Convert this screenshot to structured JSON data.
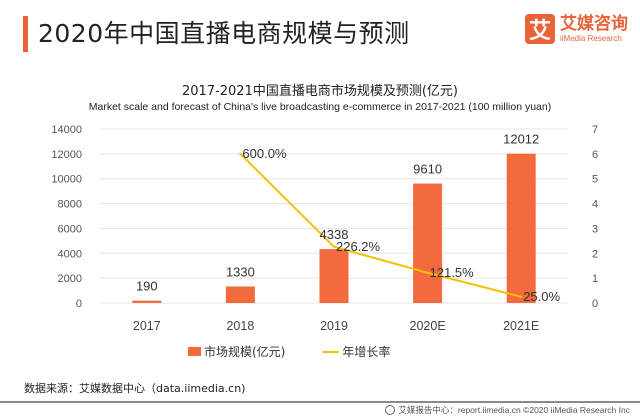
{
  "header": {
    "title": "2020年中国直播电商规模与预测",
    "logo_mark": "艾",
    "logo_cn": "艾媒咨询",
    "logo_en": "iiMedia Research"
  },
  "colors": {
    "accent": "#e8623a",
    "bar": "#f26a3d",
    "line": "#f5c000",
    "grid": "#e6e6e6"
  },
  "chart_data": {
    "type": "bar",
    "title": "2017-2021中国直播电商市场规模及预测(亿元)",
    "subtitle": "Market scale and forecast of China's live broadcasting e-commerce in 2017-2021 (100 million yuan)",
    "categories": [
      "2017",
      "2018",
      "2019",
      "2020E",
      "2021E"
    ],
    "series": [
      {
        "name": "市场规模(亿元)",
        "type": "bar",
        "axis": "left",
        "values": [
          190,
          1330,
          4338,
          9610,
          12012
        ],
        "labels": [
          "190",
          "1330",
          "4338",
          "9610",
          "12012"
        ]
      },
      {
        "name": "年增长率",
        "type": "line",
        "axis": "right",
        "values": [
          null,
          6.0,
          2.262,
          1.215,
          0.25
        ],
        "labels": [
          "",
          "600.0%",
          "226.2%",
          "121.5%",
          "25.0%"
        ]
      }
    ],
    "y_left": {
      "min": 0,
      "max": 14000,
      "ticks": [
        "0",
        "2000",
        "4000",
        "6000",
        "8000",
        "10000",
        "12000",
        "14000"
      ]
    },
    "y_right": {
      "min": 0,
      "max": 7,
      "ticks": [
        "0",
        "1",
        "2",
        "3",
        "4",
        "5",
        "6",
        "7"
      ]
    },
    "grid": true,
    "legend": "bottom-center"
  },
  "legend": {
    "bar_label": "市场规模(亿元)",
    "line_label": "年增长率"
  },
  "source": "数据来源：艾媒数据中心（data.iimedia.cn)",
  "footer": "艾媒报告中心：report.iimedia.cn  ©2020  iiMedia Research  Inc"
}
